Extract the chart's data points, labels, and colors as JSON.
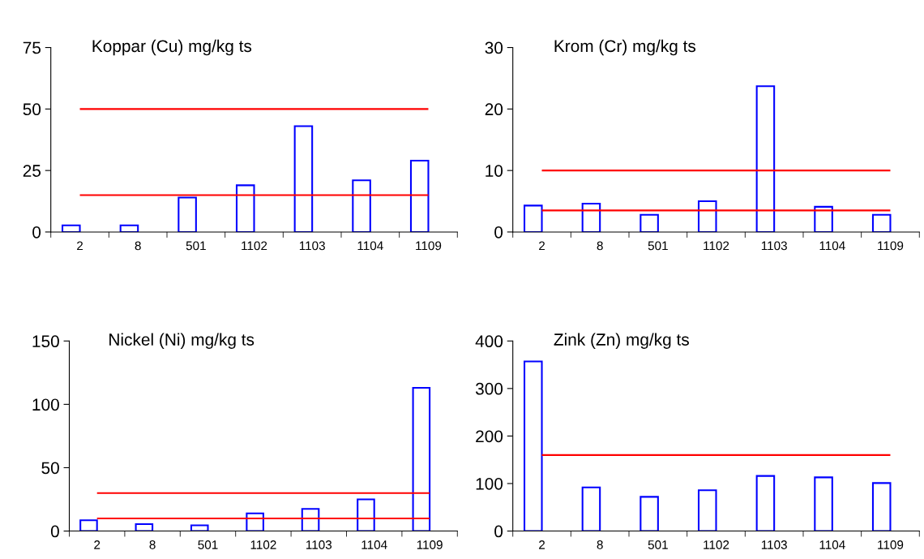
{
  "chart_data": [
    {
      "type": "bar",
      "title": "Koppar (Cu) mg/kg ts",
      "categories": [
        "2",
        "8",
        "501",
        "1102",
        "1103",
        "1104",
        "1109"
      ],
      "values": [
        2.7,
        2.7,
        14,
        19,
        43,
        21,
        29
      ],
      "color": "#0000ff",
      "ylim": [
        0,
        75
      ],
      "yticks": [
        0,
        25,
        50,
        75
      ],
      "grid": false,
      "ref_lines": [
        {
          "axis": "y",
          "value": 50,
          "color": "#ff0000"
        },
        {
          "axis": "y",
          "value": 15,
          "color": "#ff0000"
        }
      ]
    },
    {
      "type": "bar",
      "title": "Krom (Cr) mg/kg ts",
      "categories": [
        "2",
        "8",
        "501",
        "1102",
        "1103",
        "1104",
        "1109"
      ],
      "values": [
        4.3,
        4.6,
        2.8,
        5.0,
        23.7,
        4.1,
        2.8
      ],
      "color": "#0000ff",
      "ylim": [
        0,
        30
      ],
      "yticks": [
        0,
        10,
        20,
        30
      ],
      "grid": false,
      "ref_lines": [
        {
          "axis": "y",
          "value": 10,
          "color": "#ff0000"
        },
        {
          "axis": "y",
          "value": 3.5,
          "color": "#ff0000"
        }
      ]
    },
    {
      "type": "bar",
      "title": "Nickel (Ni) mg/kg ts",
      "categories": [
        "2",
        "8",
        "501",
        "1102",
        "1103",
        "1104",
        "1109"
      ],
      "values": [
        8.5,
        5.5,
        4.5,
        14,
        17.5,
        25,
        113
      ],
      "color": "#0000ff",
      "ylim": [
        0,
        150
      ],
      "yticks": [
        0,
        50,
        100,
        150
      ],
      "grid": false,
      "ref_lines": [
        {
          "axis": "y",
          "value": 30,
          "color": "#ff0000"
        },
        {
          "axis": "y",
          "value": 10,
          "color": "#ff0000"
        }
      ]
    },
    {
      "type": "bar",
      "title": "Zink (Zn) mg/kg ts",
      "categories": [
        "2",
        "8",
        "501",
        "1102",
        "1103",
        "1104",
        "1109"
      ],
      "values": [
        357,
        92,
        72,
        86,
        116,
        113,
        101
      ],
      "color": "#0000ff",
      "ylim": [
        0,
        400
      ],
      "yticks": [
        0,
        100,
        200,
        300,
        400
      ],
      "grid": false,
      "ref_lines": [
        {
          "axis": "y",
          "value": 160,
          "color": "#ff0000"
        }
      ]
    }
  ]
}
